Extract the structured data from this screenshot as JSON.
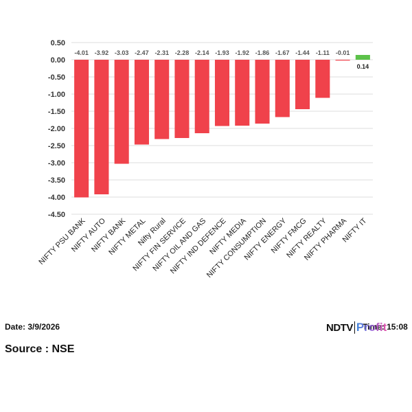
{
  "chart_data": {
    "type": "bar",
    "categories": [
      "NIFTY PSU BANK",
      "NIFTY AUTO",
      "NIFTY BANK",
      "NIFTY METAL",
      "Nifty Rural",
      "NIFTY FIN SERVICE",
      "NIFTY OIL AND GAS",
      "NIFTY IND DEFENCE",
      "NIFTY MEDIA",
      "NIFTY CONSUMPTION",
      "NIFTY ENERGY",
      "NIFTY FMCG",
      "NIFTY REALTY",
      "NIFTY PHARMA",
      "NIFTY IT"
    ],
    "values": [
      -4.01,
      -3.92,
      -3.03,
      -2.47,
      -2.31,
      -2.28,
      -2.14,
      -1.93,
      -1.92,
      -1.86,
      -1.67,
      -1.44,
      -1.11,
      -0.01,
      0.14
    ],
    "data_labels": [
      "-4.01",
      "-3.92",
      "-3.03",
      "-2.47",
      "-2.31",
      "-2.28",
      "-2.14",
      "-1.93",
      "-1.92",
      "-1.86",
      "-1.67",
      "-1.44",
      "-1.11",
      "-0.01",
      "0.14"
    ],
    "yticks": [
      "0.50",
      "0.00",
      "-0.50",
      "-1.00",
      "-1.50",
      "-2.00",
      "-2.50",
      "-3.00",
      "-3.50",
      "-4.00",
      "-4.50"
    ],
    "ylim": [
      -4.5,
      0.5
    ],
    "grid": true,
    "title": "",
    "xlabel": "",
    "ylabel": "",
    "colors": {
      "negative": "#f0424b",
      "positive": "#5cc24a",
      "grid": "#dddddd"
    }
  },
  "footer": {
    "date": "Date: 3/9/2026",
    "time": "Time: 15:08",
    "source": "Source : NSE",
    "logo_main": "NDTV",
    "logo_sub": "Profit"
  }
}
